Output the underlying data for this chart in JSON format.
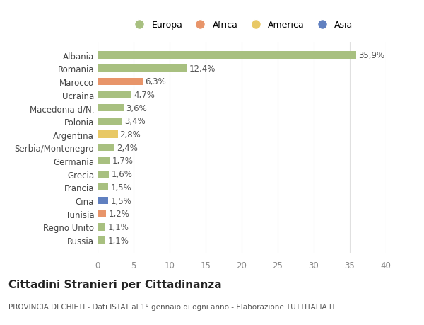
{
  "categories": [
    "Russia",
    "Regno Unito",
    "Tunisia",
    "Cina",
    "Francia",
    "Grecia",
    "Germania",
    "Serbia/Montenegro",
    "Argentina",
    "Polonia",
    "Macedonia d/N.",
    "Ucraina",
    "Marocco",
    "Romania",
    "Albania"
  ],
  "values": [
    1.1,
    1.1,
    1.2,
    1.5,
    1.5,
    1.6,
    1.7,
    2.4,
    2.8,
    3.4,
    3.6,
    4.7,
    6.3,
    12.4,
    35.9
  ],
  "labels": [
    "1,1%",
    "1,1%",
    "1,2%",
    "1,5%",
    "1,5%",
    "1,6%",
    "1,7%",
    "2,4%",
    "2,8%",
    "3,4%",
    "3,6%",
    "4,7%",
    "6,3%",
    "12,4%",
    "35,9%"
  ],
  "colors": [
    "#a8c080",
    "#a8c080",
    "#e8956a",
    "#6080c0",
    "#a8c080",
    "#a8c080",
    "#a8c080",
    "#a8c080",
    "#e8c865",
    "#a8c080",
    "#a8c080",
    "#a8c080",
    "#e8956a",
    "#a8c080",
    "#a8c080"
  ],
  "legend_labels": [
    "Europa",
    "Africa",
    "America",
    "Asia"
  ],
  "legend_colors": [
    "#a8c080",
    "#e8956a",
    "#e8c865",
    "#6080c0"
  ],
  "title": "Cittadini Stranieri per Cittadinanza",
  "subtitle": "PROVINCIA DI CHIETI - Dati ISTAT al 1° gennaio di ogni anno - Elaborazione TUTTITALIA.IT",
  "xlim": [
    0,
    40
  ],
  "xticks": [
    0,
    5,
    10,
    15,
    20,
    25,
    30,
    35,
    40
  ],
  "background_color": "#ffffff",
  "grid_color": "#e0e0e0",
  "bar_height": 0.55,
  "label_fontsize": 8.5,
  "tick_fontsize": 8.5,
  "title_fontsize": 11,
  "subtitle_fontsize": 7.5
}
